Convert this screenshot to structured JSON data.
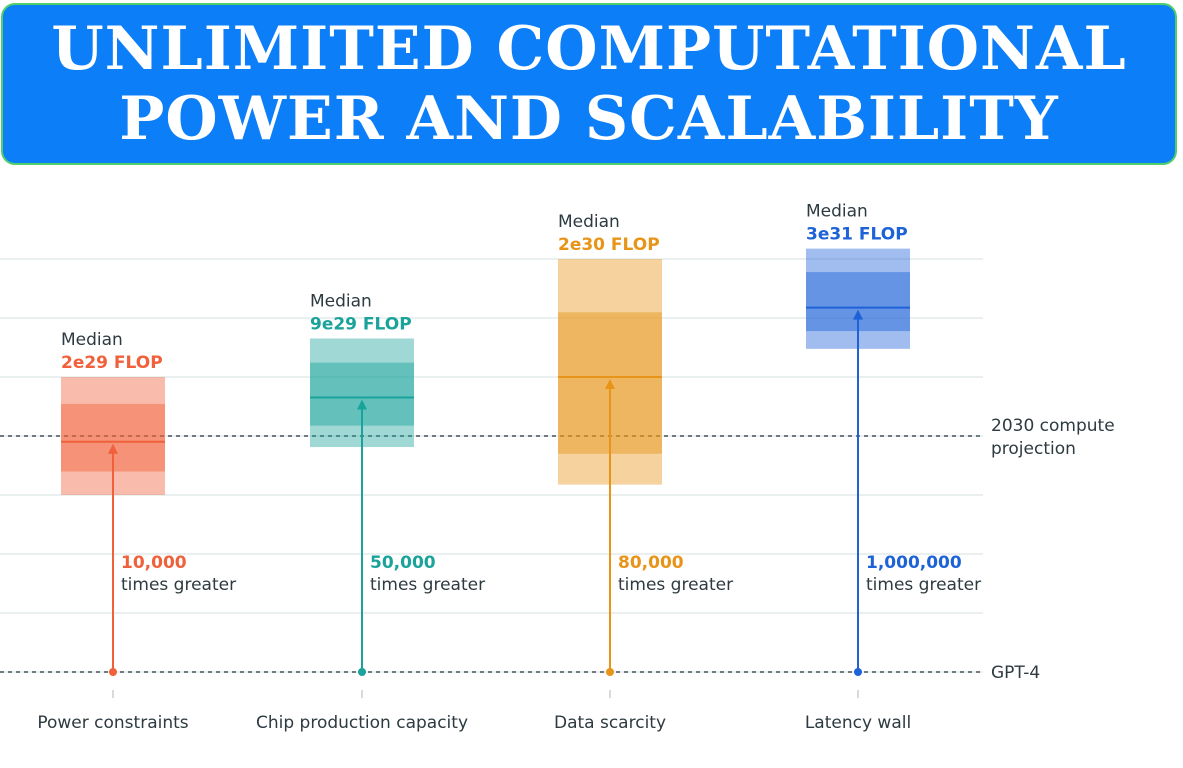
{
  "banner": {
    "line1": "UNLIMITED COMPUTATIONAL",
    "line2": "POWER AND SCALABILITY"
  },
  "chart_data": {
    "type": "box",
    "scale": "log",
    "reference_lines": [
      {
        "label": "2030 compute projection",
        "value": 2e+29
      },
      {
        "label": "GPT-4",
        "value": 2e+25
      }
    ],
    "categories": [
      "Power constraints",
      "Chip production capacity",
      "Data scarcity",
      "Latency wall"
    ],
    "series": [
      {
        "category": "Power constraints",
        "color": "#f0603a",
        "median_text": "2e29 FLOP",
        "median": 1.6e+29,
        "range_low": 2e+28,
        "range_high": 2e+30,
        "iqr_low": 5e+28,
        "iqr_high": 7e+29,
        "multiplier": "10,000",
        "multiplier_text": "times greater"
      },
      {
        "category": "Chip production capacity",
        "color": "#1aa39b",
        "median_text": "9e29 FLOP",
        "median": 9e+29,
        "range_low": 1.3e+29,
        "range_high": 9e+30,
        "iqr_low": 3e+29,
        "iqr_high": 3.5e+30,
        "multiplier": "50,000",
        "multiplier_text": "times greater"
      },
      {
        "category": "Data scarcity",
        "color": "#e89418",
        "median_text": "2e30 FLOP",
        "median": 2e+30,
        "range_low": 3e+28,
        "range_high": 2e+32,
        "iqr_low": 1e+29,
        "iqr_high": 2.5e+31,
        "multiplier": "80,000",
        "multiplier_text": "times greater"
      },
      {
        "category": "Latency wall",
        "color": "#1e62d8",
        "median_text": "3e31 FLOP",
        "median": 3e+31,
        "range_low": 6e+30,
        "range_high": 3e+32,
        "iqr_low": 1.2e+31,
        "iqr_high": 1.2e+32,
        "multiplier": "1,000,000",
        "multiplier_text": "times greater"
      }
    ],
    "median_label": "Median"
  }
}
